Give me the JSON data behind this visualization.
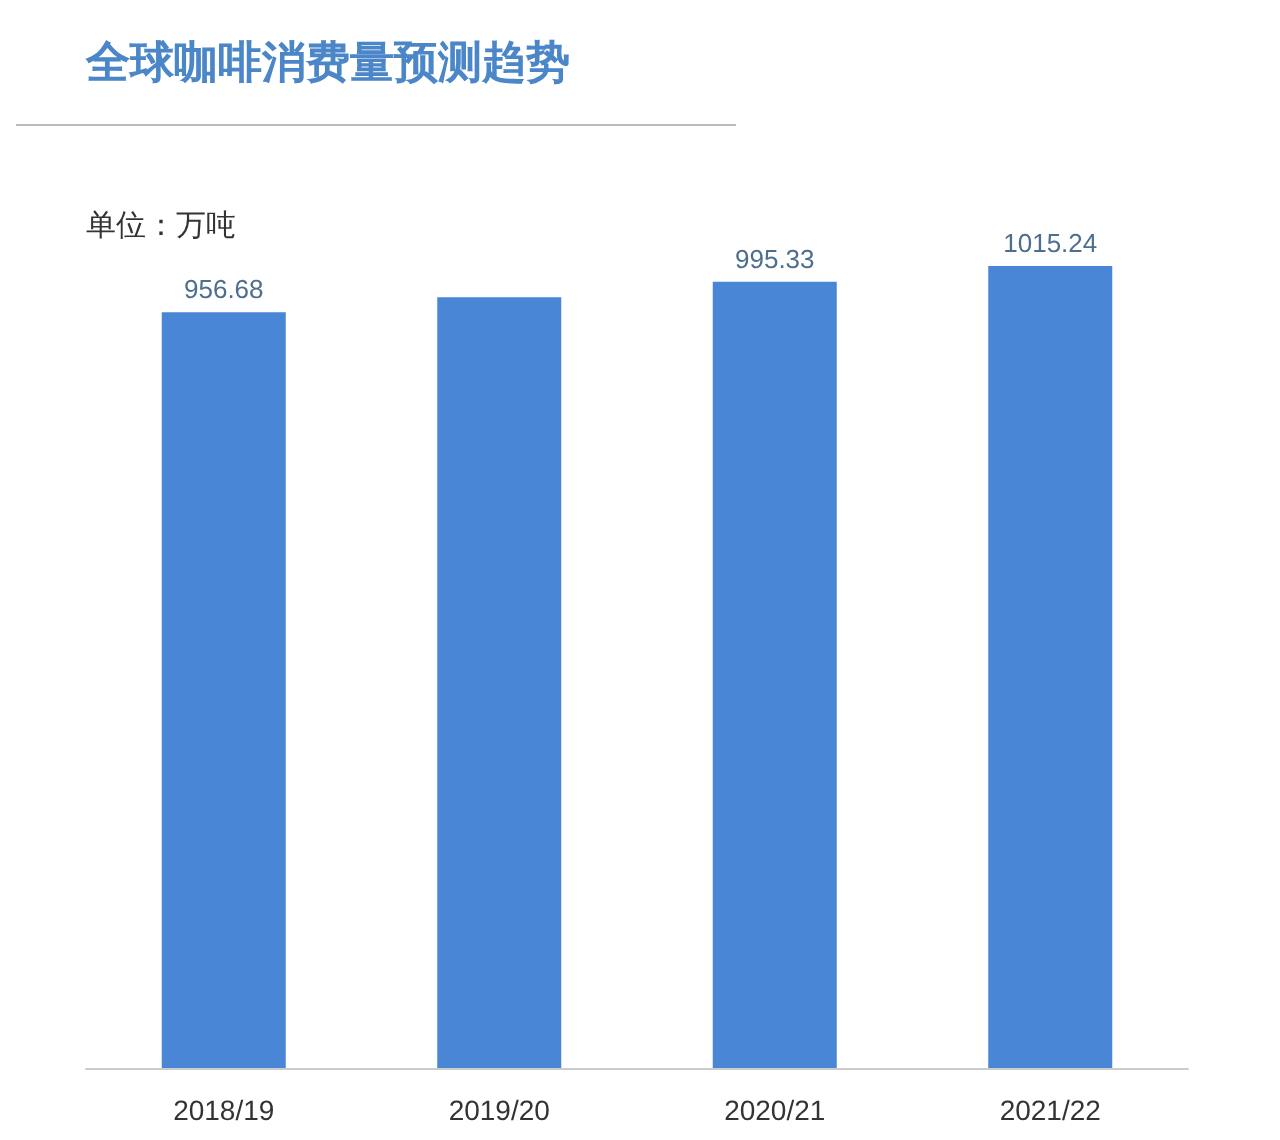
{
  "chart_data": {
    "type": "bar",
    "title": "全球咖啡消费量预测趋势",
    "subtitle": "单位：万吨",
    "categories": [
      "2018/19",
      "2019/20",
      "2020/21",
      "2021/22"
    ],
    "values": [
      956.68,
      975.6,
      995.33,
      1015.24
    ],
    "value_labels": [
      "956.68",
      null,
      "995.33",
      "1015.24"
    ],
    "color": "#4a86d6",
    "tick_labels": "x"
  }
}
